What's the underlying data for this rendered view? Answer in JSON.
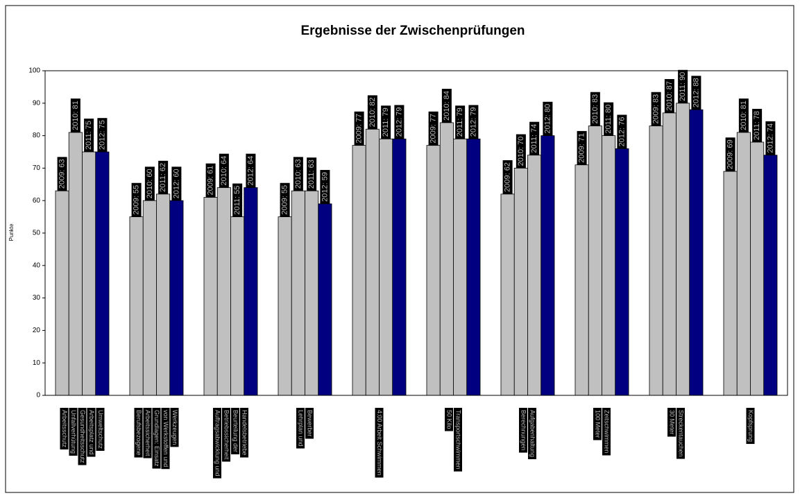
{
  "chart_data": {
    "type": "bar",
    "title": "Ergebnisse der Zwischenprüfungen",
    "y_label": "Punkte",
    "categories": [
      [
        "Arbeitsschutz",
        "Unfallverhütung",
        "Gesundheitsschutz",
        "Arbeitsplatz und",
        "Umweltschutz"
      ],
      [
        "Berufsbezogene",
        "Arbeitssicherheit",
        "Grundlagen: Einsatz",
        "von Werkstoffen und",
        "Werkzeugen"
      ],
      [
        "Auftragsabwicklung und",
        "Betriebssicherheit",
        "Beurteilung der",
        "Handelsbetriebe"
      ],
      [
        "Lehrplan und",
        "Bewerber"
      ],
      [
        "4:00 Arbeit Schwimmen"
      ],
      [
        "50 Kilo",
        "Transportschwimmen"
      ],
      [
        "Berechnungen",
        "Aufgabenhaltung"
      ],
      [
        "100 Meter",
        "Zeitschwimmen"
      ],
      [
        "30 Meter",
        "Streckentauchen"
      ],
      [
        "Kopfsprung"
      ]
    ],
    "series": [
      {
        "name": "2009",
        "color": "#c0c0c0",
        "values": [
          63,
          55,
          61,
          55,
          77,
          77,
          62,
          71,
          83,
          69
        ],
        "value_labels": [
          "2009: 63",
          "2009: 55",
          "2009: 61",
          "2009: 55",
          "2009: 77",
          "2009: 77",
          "2009: 62",
          "2009: 71",
          "2009: 83",
          "2009: 69"
        ]
      },
      {
        "name": "2010",
        "color": "#c0c0c0",
        "values": [
          81,
          60,
          64,
          63,
          82,
          84,
          70,
          83,
          87,
          81
        ],
        "value_labels": [
          "2010: 81",
          "2010: 60",
          "2010: 64",
          "2010: 63",
          "2010: 82",
          "2010: 84",
          "2010: 70",
          "2010: 83",
          "2010: 87",
          "2010: 81"
        ]
      },
      {
        "name": "2011",
        "color": "#c0c0c0",
        "values": [
          75,
          62,
          55,
          63,
          79,
          79,
          74,
          80,
          90,
          78
        ],
        "value_labels": [
          "2011: 75",
          "2011: 62",
          "2011: 55",
          "2011: 63",
          "2011: 79",
          "2011: 79",
          "2011: 74",
          "2011: 80",
          "2011: 90",
          "2011: 78"
        ]
      },
      {
        "name": "2012",
        "color": "#000080",
        "values": [
          75,
          60,
          64,
          59,
          79,
          79,
          80,
          76,
          88,
          74
        ],
        "value_labels": [
          "2012: 75",
          "2012: 60",
          "2012: 64",
          "2012: 59",
          "2012: 79",
          "2012: 79",
          "2012: 80",
          "2012: 76",
          "2012: 88",
          "2012: 74"
        ]
      }
    ],
    "ylim": [
      0,
      100
    ],
    "yticks": [
      0,
      10,
      20,
      30,
      40,
      50,
      60,
      70,
      80,
      90,
      100
    ],
    "grid": false
  }
}
